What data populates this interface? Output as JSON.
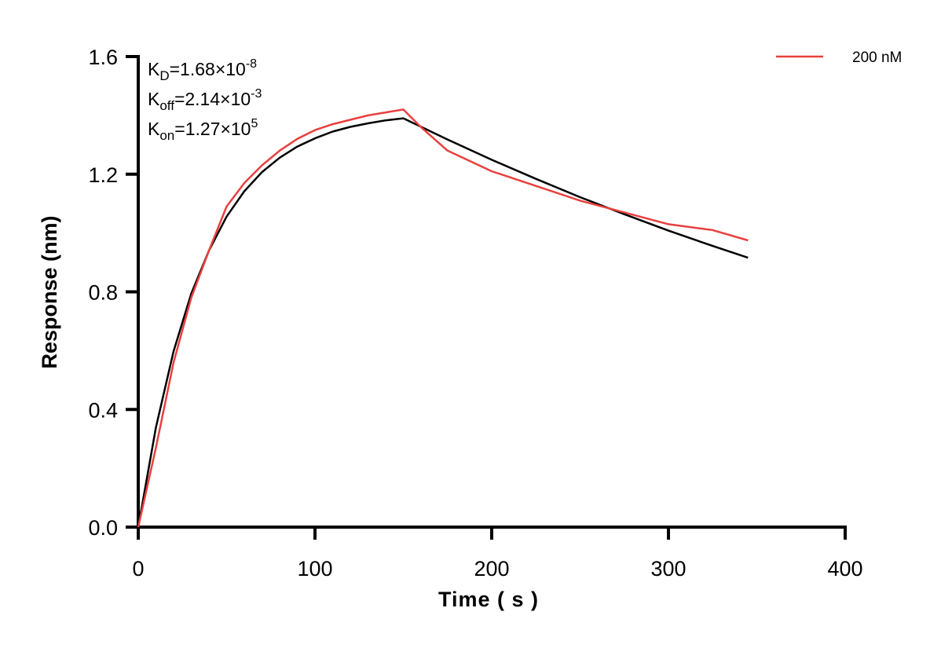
{
  "chart_data": {
    "type": "line",
    "title": "",
    "xlabel": "Time ( s )",
    "ylabel": "Response (nm)",
    "xlim": [
      0,
      400
    ],
    "ylim": [
      0,
      1.6
    ],
    "xticks": [
      0,
      100,
      200,
      300,
      400
    ],
    "xtick_labels": [
      "0",
      "100",
      "200",
      "300",
      "400"
    ],
    "yticks": [
      0,
      0.4,
      0.8,
      1.2,
      1.6
    ],
    "ytick_labels": [
      "0.0",
      "0.4",
      "0.8",
      "1.2",
      "1.6"
    ],
    "grid": false,
    "legend_position": "top-right",
    "annotations": [
      {
        "base": "K",
        "sub": "D",
        "value": "=1.68×10",
        "sup": "-8"
      },
      {
        "base": "K",
        "sub": "off",
        "value": "=2.14×10",
        "sup": "-3"
      },
      {
        "base": "K",
        "sub": "on",
        "value": "=1.27×10",
        "sup": "5"
      }
    ],
    "series": [
      {
        "name": "200 nM",
        "color": "#e8403f",
        "x": [
          0,
          10,
          20,
          30,
          40,
          50,
          60,
          70,
          80,
          90,
          100,
          110,
          120,
          130,
          140,
          150,
          160,
          175,
          200,
          225,
          250,
          275,
          300,
          325,
          345
        ],
        "y": [
          0,
          0.27,
          0.56,
          0.78,
          0.94,
          1.09,
          1.17,
          1.23,
          1.28,
          1.32,
          1.35,
          1.37,
          1.385,
          1.4,
          1.41,
          1.42,
          1.36,
          1.28,
          1.21,
          1.16,
          1.11,
          1.07,
          1.03,
          1.01,
          0.975
        ]
      },
      {
        "color": "#000000",
        "x": [
          0,
          10,
          20,
          30,
          40,
          50,
          60,
          70,
          80,
          90,
          100,
          110,
          120,
          130,
          140,
          150,
          175,
          200,
          225,
          250,
          275,
          300,
          325,
          345
        ],
        "y": [
          0,
          0.339,
          0.598,
          0.794,
          0.94,
          1.056,
          1.142,
          1.207,
          1.256,
          1.294,
          1.322,
          1.345,
          1.361,
          1.373,
          1.383,
          1.39,
          1.318,
          1.249,
          1.184,
          1.122,
          1.064,
          1.008,
          0.956,
          0.916
        ]
      }
    ]
  }
}
